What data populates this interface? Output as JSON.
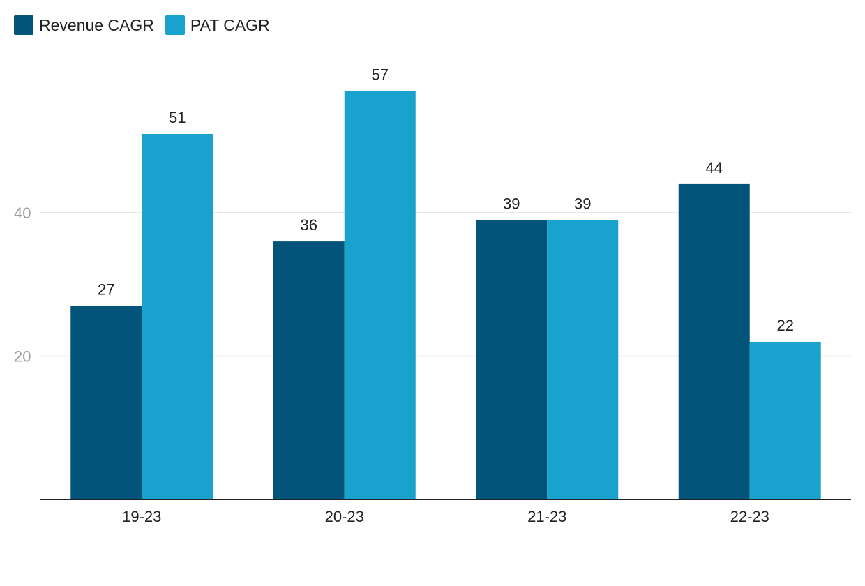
{
  "chart_data": {
    "type": "bar",
    "categories": [
      "19-23",
      "20-23",
      "21-23",
      "22-23"
    ],
    "series": [
      {
        "name": "Revenue CAGR",
        "values": [
          27,
          36,
          39,
          44
        ],
        "color": "#03547a"
      },
      {
        "name": "PAT CAGR",
        "values": [
          51,
          57,
          39,
          22
        ],
        "color": "#1aa2cf"
      }
    ],
    "yticks": [
      20,
      40
    ],
    "ylim": [
      0,
      60
    ],
    "grid": true,
    "legend": "top-left",
    "data_labels": true
  }
}
